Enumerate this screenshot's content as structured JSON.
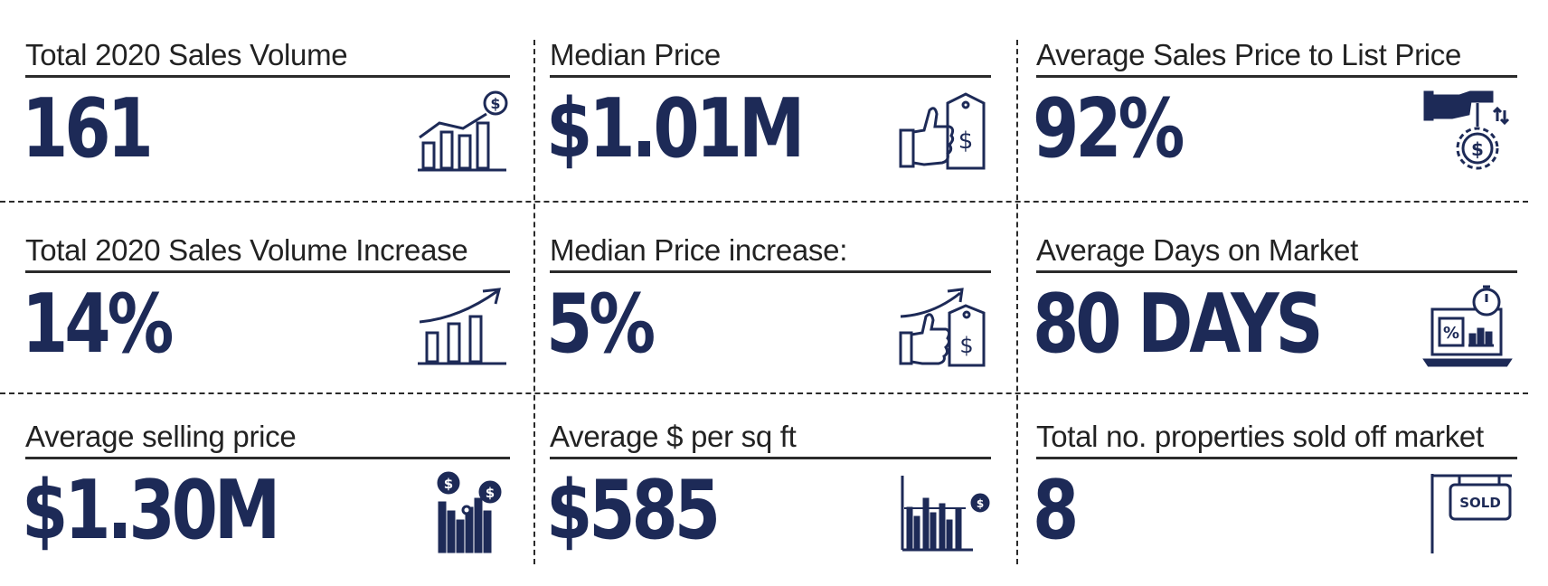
{
  "stats": [
    {
      "label": "Total 2020 Sales Volume",
      "value": "161",
      "icon": "growth-chart-dollar-icon"
    },
    {
      "label": "Median Price",
      "value": "$1.01M",
      "icon": "thumbs-up-price-tag-icon"
    },
    {
      "label": "Average Sales Price to List Price",
      "value": "92%",
      "icon": "hand-dollar-coin-icon"
    },
    {
      "label": "Total 2020 Sales Volume Increase",
      "value": "14%",
      "icon": "trend-up-bar-chart-icon"
    },
    {
      "label": "Median Price increase:",
      "value": "5%",
      "icon": "thumbs-up-price-tag-trend-icon"
    },
    {
      "label": "Average Days on Market",
      "value": "80 DAYS",
      "icon": "laptop-timer-icon"
    },
    {
      "label": "Average selling price",
      "value": "$1.30M",
      "icon": "bars-dollar-coins-icon"
    },
    {
      "label": "Average $ per sq ft",
      "value": "$585",
      "icon": "bar-chart-dollar-icon"
    },
    {
      "label": "Total no. properties sold off market",
      "value": "8",
      "icon": "sold-sign-icon"
    }
  ],
  "sold_sign_text": "SOLD",
  "colors": {
    "value": "#1d2a57",
    "label": "#222222",
    "rule": "#2b2b2b"
  }
}
